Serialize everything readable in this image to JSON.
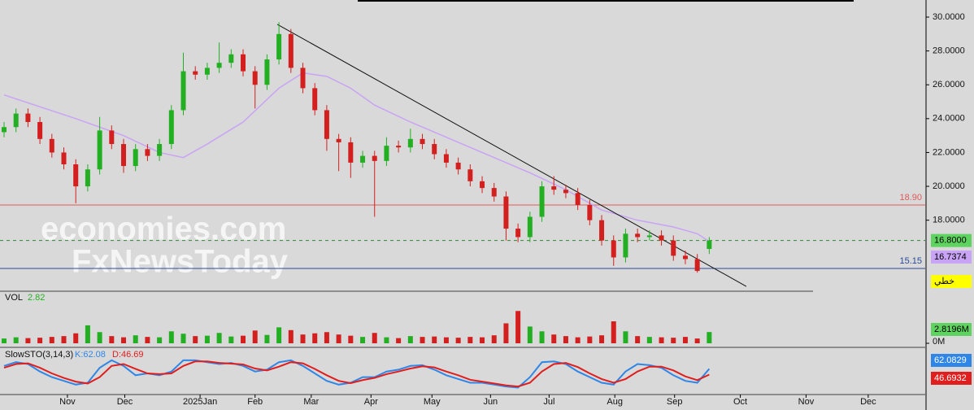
{
  "chart_data": {
    "type": "candlestick",
    "x": [
      0,
      1,
      2,
      3,
      4,
      5,
      6,
      7,
      8,
      9,
      10,
      11,
      12,
      13,
      14,
      15,
      16,
      17,
      18,
      19,
      20,
      21,
      22,
      23,
      24,
      25,
      26,
      27,
      28,
      29,
      30,
      31,
      32,
      33,
      34,
      35,
      36,
      37,
      38,
      39,
      40,
      41,
      42,
      43,
      44,
      45,
      46,
      47,
      48,
      49,
      50,
      51,
      52,
      53,
      54,
      55,
      56,
      57,
      58,
      59
    ],
    "open": [
      23.2,
      23.5,
      24.3,
      23.8,
      22.8,
      22.0,
      21.3,
      20.0,
      21.0,
      23.3,
      22.5,
      21.2,
      22.2,
      21.8,
      22.5,
      24.5,
      26.8,
      26.6,
      27.0,
      27.3,
      27.8,
      26.8,
      26.0,
      27.5,
      29.0,
      27.0,
      25.8,
      24.5,
      22.8,
      22.6,
      21.4,
      21.8,
      21.5,
      22.4,
      22.3,
      22.8,
      22.5,
      21.9,
      21.4,
      21.0,
      20.3,
      19.9,
      19.4,
      17.5,
      17.0,
      18.2,
      20.0,
      19.8,
      19.6,
      18.9,
      18.0,
      16.8,
      15.8,
      17.2,
      17.0,
      17.1,
      16.8,
      15.9,
      15.7,
      16.3
    ],
    "high": [
      23.8,
      24.6,
      24.6,
      24.1,
      23.1,
      22.3,
      21.6,
      21.3,
      24.1,
      23.6,
      22.8,
      22.5,
      22.5,
      22.8,
      24.8,
      27.9,
      27.1,
      27.3,
      28.5,
      28.1,
      28.1,
      27.1,
      27.8,
      29.7,
      29.3,
      27.3,
      26.1,
      24.8,
      23.1,
      22.9,
      22.1,
      22.1,
      22.9,
      22.7,
      23.4,
      23.1,
      22.8,
      22.2,
      21.7,
      21.3,
      20.6,
      20.2,
      19.7,
      17.8,
      18.5,
      20.3,
      20.6,
      20.1,
      19.9,
      19.2,
      18.3,
      17.1,
      17.5,
      17.5,
      17.4,
      17.4,
      17.1,
      16.2,
      16.0,
      17.0
    ],
    "low": [
      22.9,
      23.2,
      23.5,
      22.5,
      21.7,
      21.0,
      19.0,
      19.7,
      20.7,
      22.2,
      20.8,
      20.9,
      21.5,
      21.5,
      22.2,
      24.2,
      26.3,
      26.3,
      26.7,
      27.0,
      26.5,
      24.6,
      25.7,
      27.2,
      26.7,
      25.5,
      24.2,
      22.1,
      20.9,
      20.5,
      21.1,
      18.2,
      21.2,
      22.0,
      22.0,
      22.2,
      21.6,
      21.1,
      20.7,
      20.0,
      19.6,
      19.1,
      16.8,
      16.7,
      16.7,
      17.9,
      19.5,
      19.3,
      18.6,
      17.7,
      16.5,
      15.3,
      15.5,
      16.7,
      16.8,
      16.5,
      15.6,
      15.4,
      14.9,
      16.0
    ],
    "close": [
      23.5,
      24.3,
      23.8,
      22.8,
      22.0,
      21.3,
      20.0,
      21.0,
      23.3,
      22.5,
      21.2,
      22.2,
      21.8,
      22.5,
      24.5,
      26.8,
      26.6,
      27.0,
      27.3,
      27.8,
      26.8,
      26.0,
      27.5,
      29.0,
      27.0,
      25.8,
      24.5,
      22.8,
      22.6,
      21.4,
      21.8,
      21.5,
      22.4,
      22.3,
      22.8,
      22.5,
      21.9,
      21.4,
      21.0,
      20.3,
      19.9,
      19.4,
      17.5,
      17.0,
      18.2,
      20.0,
      19.8,
      19.6,
      18.9,
      18.0,
      16.8,
      15.8,
      17.2,
      17.0,
      17.1,
      16.8,
      15.9,
      15.7,
      15.0,
      16.8
    ],
    "up_color": "#22b022",
    "down_color": "#d41f1f",
    "xlim": [
      -0.34,
      77.07
    ],
    "xticks": [
      {
        "value": 5.3,
        "label": "Nov"
      },
      {
        "value": 10.1,
        "label": "Dec"
      },
      {
        "value": 16.4,
        "label": "2025Jan"
      },
      {
        "value": 21.0,
        "label": "Feb"
      },
      {
        "value": 25.7,
        "label": "Mar"
      },
      {
        "value": 30.7,
        "label": "Apr"
      },
      {
        "value": 35.8,
        "label": "May"
      },
      {
        "value": 40.7,
        "label": "Jun"
      },
      {
        "value": 45.6,
        "label": "Jul"
      },
      {
        "value": 51.1,
        "label": "Aug"
      },
      {
        "value": 56.1,
        "label": "Sep"
      },
      {
        "value": 61.6,
        "label": "Oct"
      },
      {
        "value": 67.1,
        "label": "Nov"
      },
      {
        "value": 72.3,
        "label": "Dec"
      }
    ],
    "ylim": [
      13.85,
      31.01
    ],
    "yticks": [
      {
        "value": 18,
        "label": "18.0000"
      },
      {
        "value": 20,
        "label": "20.0000"
      },
      {
        "value": 22,
        "label": "22.0000"
      },
      {
        "value": 24,
        "label": "24.0000"
      },
      {
        "value": 26,
        "label": "26.0000"
      },
      {
        "value": 28,
        "label": "28.0000"
      },
      {
        "value": 30,
        "label": "30.0000"
      }
    ],
    "moving_average": {
      "color": "#c9a3f5",
      "x": [
        0,
        6,
        10,
        13,
        15,
        17,
        20,
        23,
        25,
        27,
        29,
        31,
        34,
        37,
        40,
        44,
        47,
        50,
        53,
        56,
        58,
        59
      ],
      "values": [
        25.4,
        24.0,
        23.0,
        22.0,
        21.7,
        22.5,
        23.8,
        25.8,
        26.7,
        26.5,
        25.8,
        24.8,
        23.8,
        22.9,
        22.0,
        20.8,
        19.8,
        18.6,
        18.0,
        17.6,
        17.2,
        16.7374
      ],
      "last_label": "16.7374"
    },
    "hlines": [
      {
        "value": 18.9,
        "label": "18.90",
        "color": "#e05a5a"
      },
      {
        "value": 16.8,
        "label": "16.8000",
        "color": "#2e8b2e"
      },
      {
        "value": 15.15,
        "label": "15.15",
        "color": "#2d4a9a"
      }
    ],
    "trendline": {
      "x": [
        22.86,
        62.1
      ],
      "y": [
        29.57,
        14.09
      ],
      "color": "#111111"
    },
    "axis_note": "خطي",
    "watermark": [
      "economies.com",
      "FxNewsToday"
    ],
    "volume": {
      "title": "VOL",
      "last_label": "2.82",
      "axis_label": "2.8196M",
      "values": [
        1.2,
        1.5,
        1.3,
        1.4,
        1.6,
        1.8,
        2.5,
        4.5,
        2.8,
        1.8,
        1.5,
        2.0,
        1.6,
        1.5,
        3.0,
        2.4,
        1.8,
        1.9,
        2.6,
        1.7,
        1.9,
        3.2,
        2.1,
        4.0,
        3.3,
        2.2,
        2.5,
        2.8,
        2.2,
        1.9,
        1.6,
        2.6,
        1.5,
        1.3,
        1.8,
        1.6,
        1.7,
        1.5,
        1.4,
        1.6,
        1.5,
        2.0,
        5.0,
        8.1,
        4.2,
        3.0,
        2.2,
        1.8,
        1.5,
        1.7,
        2.0,
        5.5,
        3.0,
        1.8,
        1.6,
        1.5,
        1.4,
        1.6,
        1.2,
        2.8196
      ],
      "ylim": [
        0,
        10.6
      ],
      "yticks": [
        {
          "value": 0,
          "label": "0M"
        }
      ]
    },
    "stochastic": {
      "title": "SlowSTO(3,14,3)",
      "ylim": [
        0,
        100
      ],
      "series": [
        {
          "name": "K:62.08",
          "color": "#2f86e6",
          "axis_label": "62.0829",
          "values": [
            70,
            80,
            75,
            55,
            40,
            30,
            20,
            25,
            65,
            85,
            70,
            45,
            50,
            45,
            55,
            85,
            85,
            80,
            75,
            78,
            70,
            55,
            60,
            80,
            85,
            70,
            50,
            30,
            20,
            25,
            40,
            40,
            55,
            60,
            70,
            72,
            60,
            45,
            35,
            25,
            25,
            20,
            15,
            12,
            40,
            80,
            82,
            75,
            55,
            40,
            25,
            20,
            55,
            75,
            72,
            65,
            45,
            30,
            25,
            62.0829
          ]
        },
        {
          "name": "D:46.69",
          "color": "#e01e1e",
          "axis_label": "46.6932",
          "values": [
            65,
            75,
            77,
            65,
            50,
            38,
            28,
            23,
            40,
            70,
            75,
            62,
            50,
            48,
            50,
            70,
            82,
            82,
            78,
            76,
            74,
            63,
            58,
            68,
            80,
            77,
            62,
            45,
            30,
            24,
            32,
            38,
            48,
            55,
            63,
            69,
            66,
            55,
            45,
            33,
            28,
            23,
            18,
            15,
            25,
            55,
            75,
            78,
            67,
            50,
            35,
            25,
            35,
            55,
            68,
            68,
            58,
            42,
            32,
            46.6932
          ]
        }
      ]
    }
  }
}
